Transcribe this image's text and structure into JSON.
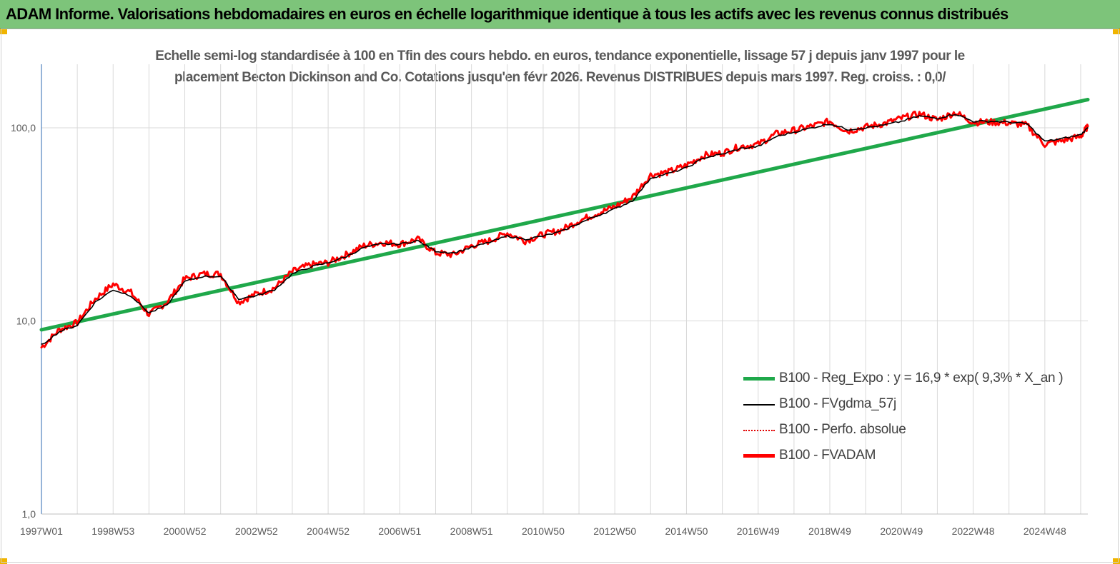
{
  "banner": {
    "title": "ADAM Informe. Valorisations hebdomadaires en euros en échelle logarithmique identique à tous les actifs avec les revenus connus distribués",
    "color": "#7dc47a"
  },
  "chart_data": {
    "type": "line",
    "title_line1": "Echelle semi-log standardisée à 100 en Tfin des cours hebdo. en euros, tendance exponentielle, lissage 57 j depuis janv 1997 pour le",
    "title_line2": "placement Becton Dickinson and Co. Cotations jusqu'en févr 2026. Revenus DISTRIBUES depuis mars 1997. Reg. croiss. : 0,0/",
    "y_scale": "log",
    "ylim": [
      1,
      200
    ],
    "y_ticks": [
      "100,0",
      "10,0",
      "1,0"
    ],
    "x_range": [
      1997.0,
      2026.2
    ],
    "x_ticks": [
      "1997W01",
      "1998W53",
      "2000W52",
      "2002W52",
      "2004W52",
      "2006W51",
      "2008W51",
      "2010W50",
      "2012W50",
      "2014W50",
      "2016W49",
      "2018W49",
      "2020W49",
      "2022W48",
      "2024W48"
    ],
    "grid": true,
    "legend_position": "bottom-right",
    "series": [
      {
        "name": "B100 - Reg_Expo : y = 16,9 *  exp( 9,3% *   X_an )",
        "color": "#1fa84a",
        "style": "thick",
        "x": [
          1997.0,
          2026.2
        ],
        "values": [
          9.0,
          140
        ]
      },
      {
        "name": "B100 - FVgdma_57j",
        "color": "#000000",
        "style": "thin",
        "x": [
          1997.0,
          1997.5,
          1998.0,
          1998.5,
          1999.0,
          1999.5,
          2000.0,
          2000.5,
          2001.0,
          2001.5,
          2002.0,
          2002.5,
          2003.0,
          2003.5,
          2004.0,
          2004.5,
          2005.0,
          2005.5,
          2006.0,
          2006.5,
          2007.0,
          2007.5,
          2008.0,
          2008.5,
          2009.0,
          2009.5,
          2010.0,
          2010.5,
          2011.0,
          2011.5,
          2012.0,
          2012.5,
          2013.0,
          2013.5,
          2014.0,
          2014.5,
          2015.0,
          2015.5,
          2016.0,
          2016.5,
          2017.0,
          2017.5,
          2018.0,
          2018.5,
          2019.0,
          2019.5,
          2020.0,
          2020.5,
          2021.0,
          2021.5,
          2022.0,
          2022.5,
          2023.0,
          2023.5,
          2024.0,
          2024.5,
          2025.0,
          2025.5,
          2026.0,
          2026.2
        ],
        "values": [
          7.5,
          8.8,
          9.5,
          12.5,
          14.5,
          13.5,
          11.0,
          12.0,
          16.0,
          17.0,
          17.0,
          13.0,
          13.5,
          14.5,
          17.5,
          19.0,
          20.0,
          21.5,
          24.0,
          25.0,
          25.0,
          26.0,
          23.0,
          22.5,
          24.0,
          25.5,
          27.5,
          26.5,
          27.5,
          29.0,
          32.0,
          35.0,
          38.0,
          42.0,
          55.0,
          58.0,
          62.0,
          70.0,
          73.0,
          78.0,
          80.0,
          90.0,
          95.0,
          100.0,
          105.0,
          98.0,
          100.0,
          103.0,
          108.0,
          115.0,
          112.0,
          118.0,
          108.0,
          108.0,
          107.0,
          105.0,
          85.0,
          88.0,
          92.0,
          100.0
        ]
      },
      {
        "name": "B100 - Perfo. absolue",
        "color": "#e00000",
        "style": "dotted",
        "x": [],
        "values": []
      },
      {
        "name": "B100 - FVADAM",
        "color": "#ff0000",
        "style": "thick",
        "x": [
          1997.0,
          1997.5,
          1998.0,
          1998.5,
          1999.0,
          1999.5,
          2000.0,
          2000.5,
          2001.0,
          2001.5,
          2002.0,
          2002.5,
          2003.0,
          2003.5,
          2004.0,
          2004.5,
          2005.0,
          2005.5,
          2006.0,
          2006.5,
          2007.0,
          2007.5,
          2008.0,
          2008.5,
          2009.0,
          2009.5,
          2010.0,
          2010.5,
          2011.0,
          2011.5,
          2012.0,
          2012.5,
          2013.0,
          2013.5,
          2014.0,
          2014.5,
          2015.0,
          2015.5,
          2016.0,
          2016.5,
          2017.0,
          2017.5,
          2018.0,
          2018.5,
          2019.0,
          2019.5,
          2020.0,
          2020.5,
          2021.0,
          2021.5,
          2022.0,
          2022.5,
          2023.0,
          2023.5,
          2024.0,
          2024.5,
          2025.0,
          2025.5,
          2026.0,
          2026.2
        ],
        "values": [
          7.3,
          9.0,
          9.8,
          13.0,
          15.5,
          14.0,
          10.8,
          12.5,
          16.5,
          17.5,
          17.5,
          12.5,
          13.8,
          14.8,
          18.0,
          19.5,
          20.0,
          22.0,
          24.5,
          25.5,
          25.0,
          26.5,
          22.5,
          22.0,
          24.5,
          26.0,
          28.5,
          26.0,
          28.0,
          29.5,
          33.0,
          36.0,
          39.0,
          44.0,
          57.0,
          59.0,
          64.0,
          72.0,
          74.0,
          80.0,
          82.0,
          93.0,
          97.0,
          102.0,
          108.0,
          96.0,
          101.0,
          105.0,
          112.0,
          118.0,
          110.0,
          120.0,
          107.0,
          107.0,
          106.0,
          103.0,
          82.0,
          86.0,
          90.0,
          102.0
        ]
      }
    ]
  }
}
